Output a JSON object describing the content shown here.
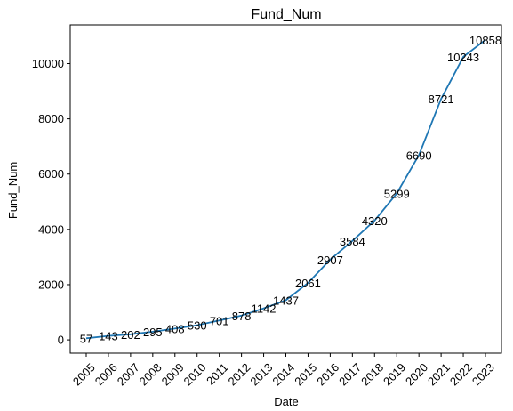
{
  "chart_data": {
    "type": "line",
    "title": "Fund_Num",
    "xlabel": "Date",
    "ylabel": "Fund_Num",
    "x": [
      "2005",
      "2006",
      "2007",
      "2008",
      "2009",
      "2010",
      "2011",
      "2012",
      "2013",
      "2014",
      "2015",
      "2016",
      "2017",
      "2018",
      "2019",
      "2020",
      "2021",
      "2022",
      "2023"
    ],
    "values": [
      57,
      143,
      202,
      295,
      408,
      530,
      701,
      878,
      1142,
      1437,
      2061,
      2907,
      3584,
      4320,
      5299,
      6690,
      8721,
      10243,
      10858
    ],
    "y_ticks": [
      0,
      2000,
      4000,
      6000,
      8000,
      10000
    ],
    "ylim": [
      -480,
      11400
    ],
    "grid": false,
    "line_color": "#1f77b4",
    "x_tick_rotation": "45 degrees"
  }
}
